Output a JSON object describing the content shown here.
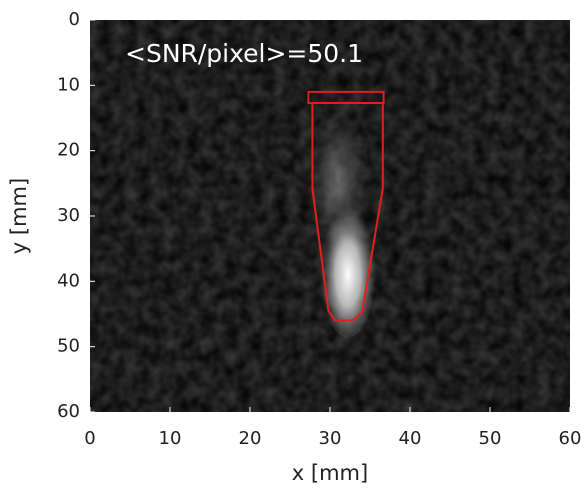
{
  "chart_data": {
    "type": "image",
    "annotation": "<SNR/pixel>=50.1",
    "xlabel": "x [mm]",
    "ylabel": "y [mm]",
    "xlim": [
      0,
      60
    ],
    "ylim": [
      60,
      0
    ],
    "xticks": [
      0,
      10,
      20,
      30,
      40,
      50,
      60
    ],
    "yticks": [
      0,
      10,
      20,
      30,
      40,
      50,
      60
    ],
    "outline_color": "#e0201c",
    "outlines": [
      {
        "x": [
          27.3,
          36.7,
          36.7,
          27.3
        ],
        "y": [
          11,
          11,
          12.7,
          12.7
        ]
      },
      {
        "x": [
          27.8,
          27.8,
          29.8,
          30.6,
          32.8,
          34.0,
          36.6,
          36.6
        ],
        "y": [
          12.7,
          25.8,
          44.5,
          46.0,
          46.0,
          44.8,
          25.8,
          12.7
        ]
      }
    ]
  }
}
